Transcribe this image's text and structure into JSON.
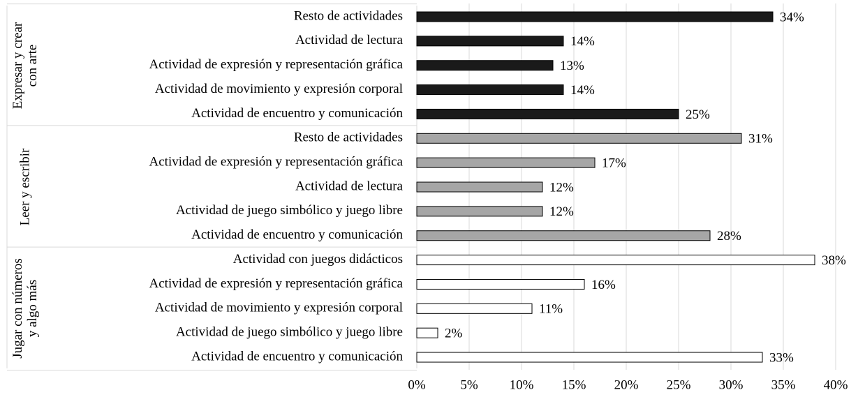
{
  "chart_data": {
    "type": "bar",
    "orientation": "horizontal",
    "series": [
      {
        "name": "Expresar y crear con arte",
        "color": "#1a1a1a",
        "categories": [
          "Resto de actividades",
          "Actividad de lectura",
          "Actividad de expresión y representación gráfica",
          "Actividad de movimiento y expresión corporal",
          "Actividad de encuentro y comunicación"
        ],
        "values": [
          34,
          14,
          13,
          14,
          25
        ],
        "value_labels": [
          "34%",
          "14%",
          "13%",
          "14%",
          "25%"
        ]
      },
      {
        "name": "Leer y escribir",
        "color": "#a6a6a6",
        "categories": [
          "Resto de actividades",
          "Actividad de expresión y representación gráfica",
          "Actividad de lectura",
          "Actividad de juego simbólico y juego libre",
          "Actividad de encuentro y comunicación"
        ],
        "values": [
          31,
          17,
          12,
          12,
          28
        ],
        "value_labels": [
          "31%",
          "17%",
          "12%",
          "12%",
          "28%"
        ]
      },
      {
        "name": "Jugar con números y algo más",
        "color": "#ffffff",
        "categories": [
          "Actividad con juegos didácticos",
          "Actividad de expresión y representación gráfica",
          "Actividad de movimiento y expresión corporal",
          "Actividad de juego simbólico y juego libre",
          "Actividad de encuentro y comunicación"
        ],
        "values": [
          38,
          16,
          11,
          2,
          33
        ],
        "value_labels": [
          "38%",
          "16%",
          "11%",
          "2%",
          "33%"
        ]
      }
    ],
    "xlim": [
      0,
      40
    ],
    "xticks": [
      {
        "value": 0,
        "label": "0%"
      },
      {
        "value": 5,
        "label": "5%"
      },
      {
        "value": 10,
        "label": "10%"
      },
      {
        "value": 15,
        "label": "15%"
      },
      {
        "value": 20,
        "label": "20%"
      },
      {
        "value": 25,
        "label": "25%"
      },
      {
        "value": 30,
        "label": "30%"
      },
      {
        "value": 35,
        "label": "35%"
      },
      {
        "value": 40,
        "label": "40%"
      }
    ],
    "grid": true
  }
}
